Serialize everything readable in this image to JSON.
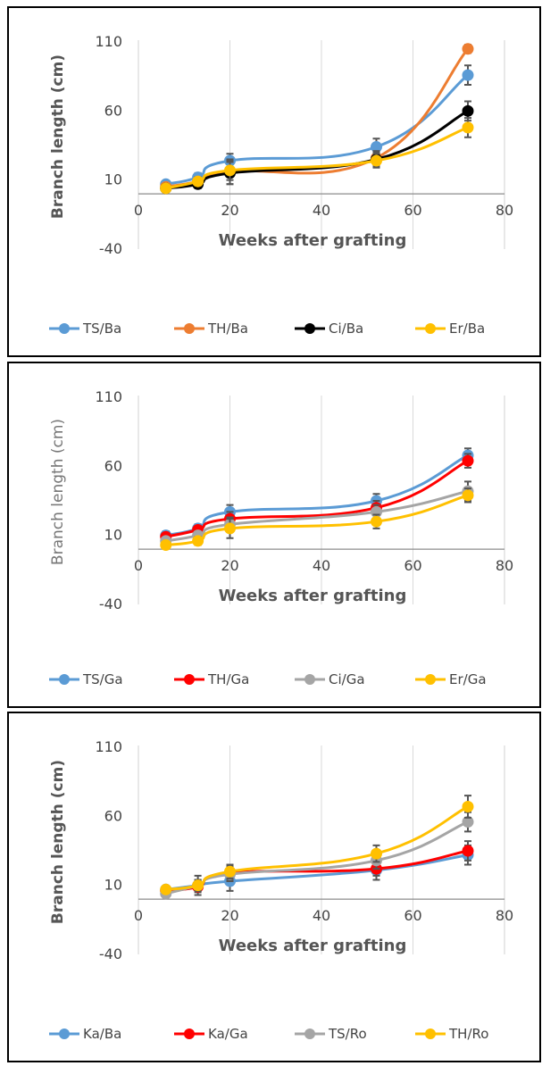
{
  "chart_data": [
    {
      "type": "line",
      "xlabel": "Weeks after grafting",
      "ylabel": "Branch length (cm)",
      "xlim": [
        0,
        80
      ],
      "ylim": [
        -40,
        110
      ],
      "xticks": [
        "0",
        "20",
        "40",
        "60",
        "80"
      ],
      "yticks": [
        "110",
        "60",
        "10",
        "-40"
      ],
      "x": [
        6,
        13,
        20,
        52,
        72
      ],
      "legend_position": "bottom",
      "series": [
        {
          "name": "TS/Ba",
          "color": "#5B9BD5",
          "values": [
            7,
            12,
            24,
            34,
            86
          ],
          "error": [
            2,
            3,
            5,
            6,
            7
          ]
        },
        {
          "name": "TH/Ba",
          "color": "#ED7D31",
          "values": [
            5,
            9,
            16,
            26,
            105
          ],
          "error": [
            2,
            3,
            9,
            5,
            3
          ]
        },
        {
          "name": "Ci/Ba",
          "color": "#000000",
          "values": [
            4,
            7,
            15,
            25,
            60
          ],
          "error": [
            2,
            3,
            8,
            5,
            7
          ]
        },
        {
          "name": "Er/Ba",
          "color": "#FFC000",
          "values": [
            4,
            9,
            17,
            24,
            48
          ],
          "error": [
            2,
            3,
            7,
            5,
            7
          ]
        }
      ]
    },
    {
      "type": "line",
      "xlabel": "Weeks after grafting",
      "ylabel": "Branch length (cm)",
      "xlim": [
        0,
        80
      ],
      "ylim": [
        -40,
        110
      ],
      "xticks": [
        "0",
        "20",
        "40",
        "60",
        "80"
      ],
      "yticks": [
        "110",
        "60",
        "10",
        "-40"
      ],
      "x": [
        6,
        13,
        20,
        52,
        72
      ],
      "legend_position": "bottom",
      "series": [
        {
          "name": "TS/Ga",
          "color": "#5B9BD5",
          "values": [
            10,
            15,
            27,
            35,
            68
          ],
          "error": [
            3,
            3,
            5,
            5,
            5
          ]
        },
        {
          "name": "TH/Ga",
          "color": "#FF0000",
          "values": [
            9,
            14,
            22,
            30,
            64
          ],
          "error": [
            3,
            3,
            5,
            5,
            5
          ]
        },
        {
          "name": "Ci/Ga",
          "color": "#A5A5A5",
          "values": [
            6,
            10,
            18,
            27,
            42
          ],
          "error": [
            2,
            3,
            5,
            5,
            7
          ]
        },
        {
          "name": "Er/Ga",
          "color": "#FFC000",
          "values": [
            3,
            6,
            15,
            20,
            39
          ],
          "error": [
            2,
            3,
            7,
            5,
            5
          ]
        }
      ]
    },
    {
      "type": "line",
      "xlabel": "Weeks after grafting",
      "ylabel": "Branch length (cm)",
      "xlim": [
        0,
        80
      ],
      "ylim": [
        -40,
        110
      ],
      "xticks": [
        "0",
        "20",
        "40",
        "60",
        "80"
      ],
      "yticks": [
        "110",
        "60",
        "10",
        "-40"
      ],
      "x": [
        6,
        13,
        20,
        52,
        72
      ],
      "legend_position": "bottom",
      "series": [
        {
          "name": "Ka/Ba",
          "color": "#5B9BD5",
          "values": [
            7,
            10,
            13,
            21,
            32
          ],
          "error": [
            2,
            7,
            7,
            7,
            7
          ]
        },
        {
          "name": "Ka/Ga",
          "color": "#FF0000",
          "values": [
            6,
            9,
            19,
            22,
            35
          ],
          "error": [
            2,
            4,
            5,
            5,
            7
          ]
        },
        {
          "name": "TS/Ro",
          "color": "#A5A5A5",
          "values": [
            4,
            10,
            18,
            28,
            56
          ],
          "error": [
            2,
            4,
            5,
            6,
            7
          ]
        },
        {
          "name": "TH/Ro",
          "color": "#FFC000",
          "values": [
            7,
            10,
            20,
            33,
            67
          ],
          "error": [
            2,
            4,
            5,
            6,
            8
          ]
        }
      ]
    }
  ]
}
